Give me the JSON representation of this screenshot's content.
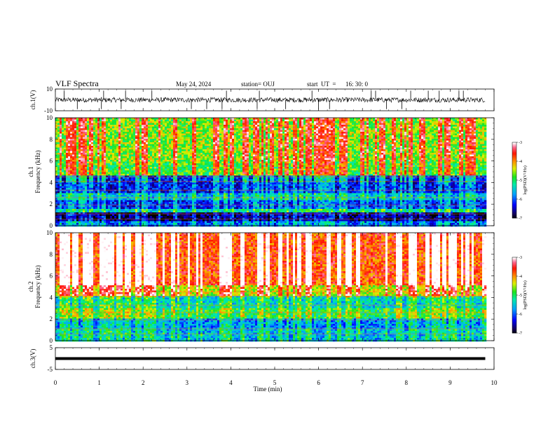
{
  "header": {
    "title": "VLF Spectra",
    "date": "May 24, 2024",
    "station": "station= OUJ",
    "start_label": "start  UT  =",
    "start_time": "16: 30: 0"
  },
  "chart_data": {
    "type": "heatmap",
    "xlabel": "Time  (min)",
    "xlim": [
      0,
      10
    ],
    "x_ticks": [
      "0",
      "1",
      "2",
      "3",
      "4",
      "5",
      "6",
      "7",
      "8",
      "9",
      "10"
    ],
    "panels": [
      {
        "id": "ch1-waveform",
        "type": "line",
        "ylabel": "ch.1(V)",
        "ylim": [
          -10,
          10
        ],
        "y_ticks": [
          "10",
          "-10"
        ],
        "baseline": 0,
        "spikes_min": [
          0.2,
          0.5,
          1.05,
          1.1,
          1.5,
          1.6,
          2.2,
          3.1,
          3.45,
          3.8,
          3.9,
          4.6,
          4.65,
          5.25,
          5.85,
          6.0,
          6.25,
          7.2,
          7.3,
          7.55,
          7.9,
          8.1,
          8.5,
          8.75,
          9.2,
          9.3
        ]
      },
      {
        "id": "ch1-spectrogram",
        "type": "heatmap",
        "ylabel": "ch.1",
        "ylabel2": "Frequency  (kHz)",
        "ylim": [
          0,
          10
        ],
        "y_ticks": [
          "0",
          "2",
          "4",
          "6",
          "8",
          "10"
        ],
        "data_end_min": 9.8,
        "colorbar": {
          "label": "log(PSD)(V²/Hz)",
          "range": [
            -7,
            -3
          ],
          "ticks": [
            "-3",
            "-4",
            "-5",
            "-6",
            "-7"
          ]
        },
        "bands": [
          {
            "from_khz": 0.0,
            "to_khz": 0.4,
            "level": -6.0
          },
          {
            "from_khz": 0.4,
            "to_khz": 1.2,
            "level": -6.8
          },
          {
            "from_khz": 1.2,
            "to_khz": 1.6,
            "level": -5.4
          },
          {
            "from_khz": 1.6,
            "to_khz": 2.4,
            "level": -6.2
          },
          {
            "from_khz": 2.4,
            "to_khz": 3.0,
            "level": -5.6
          },
          {
            "from_khz": 3.0,
            "to_khz": 4.6,
            "level": -6.3
          },
          {
            "from_khz": 4.6,
            "to_khz": 6.0,
            "level": -4.8
          },
          {
            "from_khz": 6.0,
            "to_khz": 10.0,
            "level": -4.6
          }
        ]
      },
      {
        "id": "ch2-spectrogram",
        "type": "heatmap",
        "ylabel": "ch.2",
        "ylabel2": "Frequency  (kHz)",
        "ylim": [
          0,
          10
        ],
        "y_ticks": [
          "0",
          "2",
          "4",
          "6",
          "8",
          "10"
        ],
        "data_end_min": 9.8,
        "colorbar": {
          "label": "log(PSD)(V²/Hz)",
          "range": [
            -7,
            -3
          ],
          "ticks": [
            "-3",
            "-4",
            "-5",
            "-6",
            "-7"
          ]
        },
        "bands": [
          {
            "from_khz": 0.0,
            "to_khz": 1.0,
            "level": -5.6
          },
          {
            "from_khz": 1.0,
            "to_khz": 2.0,
            "level": -5.8
          },
          {
            "from_khz": 2.0,
            "to_khz": 3.0,
            "level": -5.0
          },
          {
            "from_khz": 3.0,
            "to_khz": 4.2,
            "level": -5.4
          },
          {
            "from_khz": 4.2,
            "to_khz": 5.2,
            "level": -4.4
          },
          {
            "from_khz": 5.2,
            "to_khz": 10.0,
            "level": -3.7
          }
        ]
      },
      {
        "id": "ch3-waveform",
        "type": "line",
        "ylabel": "ch.3(V)",
        "ylim": [
          -5,
          5
        ],
        "y_ticks": [
          "5",
          "-5"
        ],
        "baseline": 0
      }
    ]
  }
}
